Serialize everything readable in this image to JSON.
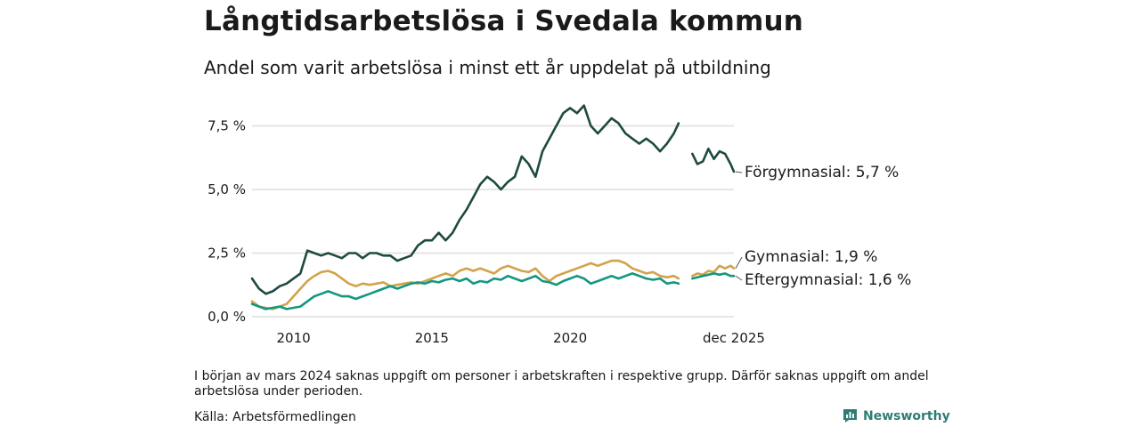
{
  "header": {
    "title": "Långtidsarbetslösa i Svedala kommun",
    "subtitle": "Andel som varit arbetslösa i minst ett år uppdelat på utbildning"
  },
  "footer": {
    "note": "I början av mars 2024 saknas uppgift om personer i arbetskraften i respektive grupp. Därför saknas uppgift om andel arbetslösa under perioden.",
    "source": "Källa: Arbetsförmedlingen",
    "brand": "Newsworthy"
  },
  "colors": {
    "forgymnasial": "#1e4a40",
    "gymnasial": "#d2a24c",
    "eftergymnasial": "#139781",
    "grid": "#dddddd",
    "brand": "#2e7d72"
  },
  "chart_data": {
    "type": "line",
    "title": "Långtidsarbetslösa i Svedala kommun",
    "subtitle": "Andel som varit arbetslösa i minst ett år uppdelat på utbildning",
    "xlabel": "",
    "ylabel": "",
    "unit": "%",
    "x_start": 2008.5,
    "x_end": 2025.92,
    "xlim": [
      2008.5,
      2025.92
    ],
    "ylim": [
      0,
      8.6
    ],
    "grid": true,
    "y_ticks": [
      {
        "value": 0.0,
        "label": "0,0 %"
      },
      {
        "value": 2.5,
        "label": "2,5 %"
      },
      {
        "value": 5.0,
        "label": "5,0 %"
      },
      {
        "value": 7.5,
        "label": "7,5 %"
      }
    ],
    "x_ticks": [
      {
        "value": 2010,
        "label": "2010"
      },
      {
        "value": 2015,
        "label": "2015"
      },
      {
        "value": 2020,
        "label": "2020"
      },
      {
        "value": 2025.92,
        "label": "dec 2025"
      }
    ],
    "gap": {
      "start": 2024.1,
      "end": 2024.4
    },
    "series": [
      {
        "name": "Förgymnasial",
        "end_label": "Förgymnasial: 5,7 %",
        "color": "#1e4a40",
        "points": [
          [
            2008.5,
            1.5
          ],
          [
            2008.75,
            1.1
          ],
          [
            2009.0,
            0.9
          ],
          [
            2009.25,
            1.0
          ],
          [
            2009.5,
            1.2
          ],
          [
            2009.75,
            1.3
          ],
          [
            2010.0,
            1.5
          ],
          [
            2010.25,
            1.7
          ],
          [
            2010.5,
            2.6
          ],
          [
            2010.75,
            2.5
          ],
          [
            2011.0,
            2.4
          ],
          [
            2011.25,
            2.5
          ],
          [
            2011.5,
            2.4
          ],
          [
            2011.75,
            2.3
          ],
          [
            2012.0,
            2.5
          ],
          [
            2012.25,
            2.5
          ],
          [
            2012.5,
            2.3
          ],
          [
            2012.75,
            2.5
          ],
          [
            2013.0,
            2.5
          ],
          [
            2013.25,
            2.4
          ],
          [
            2013.5,
            2.4
          ],
          [
            2013.75,
            2.2
          ],
          [
            2014.0,
            2.3
          ],
          [
            2014.25,
            2.4
          ],
          [
            2014.5,
            2.8
          ],
          [
            2014.75,
            3.0
          ],
          [
            2015.0,
            3.0
          ],
          [
            2015.25,
            3.3
          ],
          [
            2015.5,
            3.0
          ],
          [
            2015.75,
            3.3
          ],
          [
            2016.0,
            3.8
          ],
          [
            2016.25,
            4.2
          ],
          [
            2016.5,
            4.7
          ],
          [
            2016.75,
            5.2
          ],
          [
            2017.0,
            5.5
          ],
          [
            2017.25,
            5.3
          ],
          [
            2017.5,
            5.0
          ],
          [
            2017.75,
            5.3
          ],
          [
            2018.0,
            5.5
          ],
          [
            2018.25,
            6.3
          ],
          [
            2018.5,
            6.0
          ],
          [
            2018.75,
            5.5
          ],
          [
            2019.0,
            6.5
          ],
          [
            2019.25,
            7.0
          ],
          [
            2019.5,
            7.5
          ],
          [
            2019.75,
            8.0
          ],
          [
            2020.0,
            8.2
          ],
          [
            2020.25,
            8.0
          ],
          [
            2020.5,
            8.3
          ],
          [
            2020.75,
            7.5
          ],
          [
            2021.0,
            7.2
          ],
          [
            2021.25,
            7.5
          ],
          [
            2021.5,
            7.8
          ],
          [
            2021.75,
            7.6
          ],
          [
            2022.0,
            7.2
          ],
          [
            2022.25,
            7.0
          ],
          [
            2022.5,
            6.8
          ],
          [
            2022.75,
            7.0
          ],
          [
            2023.0,
            6.8
          ],
          [
            2023.25,
            6.5
          ],
          [
            2023.5,
            6.8
          ],
          [
            2023.75,
            7.2
          ],
          [
            2023.92,
            7.6
          ],
          null,
          [
            2024.42,
            6.4
          ],
          [
            2024.6,
            6.0
          ],
          [
            2024.8,
            6.1
          ],
          [
            2025.0,
            6.6
          ],
          [
            2025.2,
            6.2
          ],
          [
            2025.4,
            6.5
          ],
          [
            2025.6,
            6.4
          ],
          [
            2025.8,
            6.0
          ],
          [
            2025.92,
            5.7
          ]
        ]
      },
      {
        "name": "Gymnasial",
        "end_label": "Gymnasial: 1,9 %",
        "color": "#d2a24c",
        "points": [
          [
            2008.5,
            0.6
          ],
          [
            2008.75,
            0.4
          ],
          [
            2009.0,
            0.35
          ],
          [
            2009.25,
            0.3
          ],
          [
            2009.5,
            0.4
          ],
          [
            2009.75,
            0.5
          ],
          [
            2010.0,
            0.8
          ],
          [
            2010.25,
            1.1
          ],
          [
            2010.5,
            1.4
          ],
          [
            2010.75,
            1.6
          ],
          [
            2011.0,
            1.75
          ],
          [
            2011.25,
            1.8
          ],
          [
            2011.5,
            1.7
          ],
          [
            2011.75,
            1.5
          ],
          [
            2012.0,
            1.3
          ],
          [
            2012.25,
            1.2
          ],
          [
            2012.5,
            1.3
          ],
          [
            2012.75,
            1.25
          ],
          [
            2013.0,
            1.3
          ],
          [
            2013.25,
            1.35
          ],
          [
            2013.5,
            1.2
          ],
          [
            2013.75,
            1.25
          ],
          [
            2014.0,
            1.3
          ],
          [
            2014.25,
            1.35
          ],
          [
            2014.5,
            1.3
          ],
          [
            2014.75,
            1.4
          ],
          [
            2015.0,
            1.5
          ],
          [
            2015.25,
            1.6
          ],
          [
            2015.5,
            1.7
          ],
          [
            2015.75,
            1.6
          ],
          [
            2016.0,
            1.8
          ],
          [
            2016.25,
            1.9
          ],
          [
            2016.5,
            1.8
          ],
          [
            2016.75,
            1.9
          ],
          [
            2017.0,
            1.8
          ],
          [
            2017.25,
            1.7
          ],
          [
            2017.5,
            1.9
          ],
          [
            2017.75,
            2.0
          ],
          [
            2018.0,
            1.9
          ],
          [
            2018.25,
            1.8
          ],
          [
            2018.5,
            1.75
          ],
          [
            2018.75,
            1.9
          ],
          [
            2019.0,
            1.6
          ],
          [
            2019.25,
            1.4
          ],
          [
            2019.5,
            1.6
          ],
          [
            2019.75,
            1.7
          ],
          [
            2020.0,
            1.8
          ],
          [
            2020.25,
            1.9
          ],
          [
            2020.5,
            2.0
          ],
          [
            2020.75,
            2.1
          ],
          [
            2021.0,
            2.0
          ],
          [
            2021.25,
            2.1
          ],
          [
            2021.5,
            2.2
          ],
          [
            2021.75,
            2.2
          ],
          [
            2022.0,
            2.1
          ],
          [
            2022.25,
            1.9
          ],
          [
            2022.5,
            1.8
          ],
          [
            2022.75,
            1.7
          ],
          [
            2023.0,
            1.75
          ],
          [
            2023.25,
            1.6
          ],
          [
            2023.5,
            1.55
          ],
          [
            2023.75,
            1.6
          ],
          [
            2023.92,
            1.5
          ],
          null,
          [
            2024.42,
            1.6
          ],
          [
            2024.6,
            1.7
          ],
          [
            2024.8,
            1.65
          ],
          [
            2025.0,
            1.8
          ],
          [
            2025.2,
            1.75
          ],
          [
            2025.4,
            2.0
          ],
          [
            2025.6,
            1.9
          ],
          [
            2025.8,
            2.0
          ],
          [
            2025.92,
            1.9
          ]
        ]
      },
      {
        "name": "Eftergymnasial",
        "end_label": "Eftergymnasial: 1,6 %",
        "color": "#139781",
        "points": [
          [
            2008.5,
            0.5
          ],
          [
            2008.75,
            0.4
          ],
          [
            2009.0,
            0.3
          ],
          [
            2009.25,
            0.35
          ],
          [
            2009.5,
            0.4
          ],
          [
            2009.75,
            0.3
          ],
          [
            2010.0,
            0.35
          ],
          [
            2010.25,
            0.4
          ],
          [
            2010.5,
            0.6
          ],
          [
            2010.75,
            0.8
          ],
          [
            2011.0,
            0.9
          ],
          [
            2011.25,
            1.0
          ],
          [
            2011.5,
            0.9
          ],
          [
            2011.75,
            0.8
          ],
          [
            2012.0,
            0.8
          ],
          [
            2012.25,
            0.7
          ],
          [
            2012.5,
            0.8
          ],
          [
            2012.75,
            0.9
          ],
          [
            2013.0,
            1.0
          ],
          [
            2013.25,
            1.1
          ],
          [
            2013.5,
            1.2
          ],
          [
            2013.75,
            1.1
          ],
          [
            2014.0,
            1.2
          ],
          [
            2014.25,
            1.3
          ],
          [
            2014.5,
            1.35
          ],
          [
            2014.75,
            1.3
          ],
          [
            2015.0,
            1.4
          ],
          [
            2015.25,
            1.35
          ],
          [
            2015.5,
            1.45
          ],
          [
            2015.75,
            1.5
          ],
          [
            2016.0,
            1.4
          ],
          [
            2016.25,
            1.5
          ],
          [
            2016.5,
            1.3
          ],
          [
            2016.75,
            1.4
          ],
          [
            2017.0,
            1.35
          ],
          [
            2017.25,
            1.5
          ],
          [
            2017.5,
            1.45
          ],
          [
            2017.75,
            1.6
          ],
          [
            2018.0,
            1.5
          ],
          [
            2018.25,
            1.4
          ],
          [
            2018.5,
            1.5
          ],
          [
            2018.75,
            1.6
          ],
          [
            2019.0,
            1.4
          ],
          [
            2019.25,
            1.35
          ],
          [
            2019.5,
            1.25
          ],
          [
            2019.75,
            1.4
          ],
          [
            2020.0,
            1.5
          ],
          [
            2020.25,
            1.6
          ],
          [
            2020.5,
            1.5
          ],
          [
            2020.75,
            1.3
          ],
          [
            2021.0,
            1.4
          ],
          [
            2021.25,
            1.5
          ],
          [
            2021.5,
            1.6
          ],
          [
            2021.75,
            1.5
          ],
          [
            2022.0,
            1.6
          ],
          [
            2022.25,
            1.7
          ],
          [
            2022.5,
            1.6
          ],
          [
            2022.75,
            1.5
          ],
          [
            2023.0,
            1.45
          ],
          [
            2023.25,
            1.5
          ],
          [
            2023.5,
            1.3
          ],
          [
            2023.75,
            1.35
          ],
          [
            2023.92,
            1.3
          ],
          null,
          [
            2024.42,
            1.5
          ],
          [
            2024.6,
            1.55
          ],
          [
            2024.8,
            1.6
          ],
          [
            2025.0,
            1.65
          ],
          [
            2025.2,
            1.7
          ],
          [
            2025.4,
            1.65
          ],
          [
            2025.6,
            1.7
          ],
          [
            2025.8,
            1.6
          ],
          [
            2025.92,
            1.6
          ]
        ]
      }
    ]
  }
}
